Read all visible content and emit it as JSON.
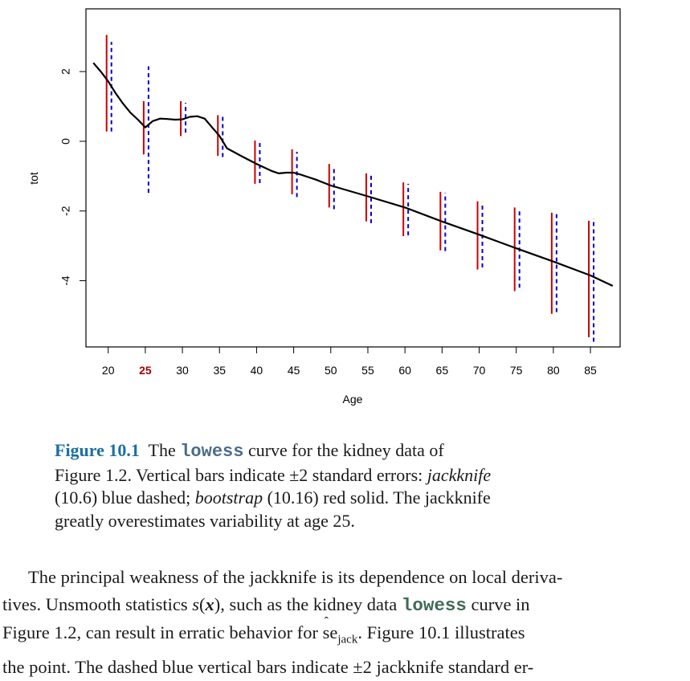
{
  "chart_data": {
    "type": "line",
    "xlabel": "Age",
    "ylabel": "tot",
    "xlim": [
      17,
      89
    ],
    "ylim": [
      -5.9,
      3.8
    ],
    "x_ticks": [
      "20",
      "25",
      "30",
      "35",
      "40",
      "45",
      "50",
      "55",
      "60",
      "65",
      "70",
      "75",
      "80",
      "85"
    ],
    "highlight_tick": "25",
    "y_ticks": [
      "-4",
      "-2",
      "0",
      "2"
    ],
    "curve": {
      "x": [
        18,
        19,
        20,
        21,
        22,
        23,
        24,
        25,
        26,
        27,
        28,
        29,
        30,
        31,
        32,
        33,
        34,
        35,
        36,
        38,
        40,
        42,
        43,
        44,
        45,
        46,
        48,
        50,
        55,
        60,
        65,
        70,
        75,
        80,
        85,
        88
      ],
      "y": [
        2.25,
        2.0,
        1.72,
        1.38,
        1.08,
        0.82,
        0.62,
        0.4,
        0.58,
        0.65,
        0.64,
        0.62,
        0.63,
        0.7,
        0.72,
        0.65,
        0.4,
        0.15,
        -0.2,
        -0.43,
        -0.65,
        -0.85,
        -0.92,
        -0.9,
        -0.9,
        -0.96,
        -1.1,
        -1.27,
        -1.58,
        -1.9,
        -2.3,
        -2.68,
        -3.07,
        -3.45,
        -3.85,
        -4.15
      ]
    },
    "series": [
      {
        "name": "bootstrap (10.16) red solid",
        "color": "#cc0000",
        "style": "solid",
        "ages": [
          20,
          25,
          30,
          35,
          40,
          45,
          50,
          55,
          60,
          65,
          70,
          75,
          80,
          85
        ],
        "lower": [
          0.28,
          -0.38,
          0.15,
          -0.42,
          -1.22,
          -1.52,
          -1.9,
          -2.3,
          -2.72,
          -3.13,
          -3.68,
          -4.3,
          -4.95,
          -5.62
        ],
        "upper": [
          3.05,
          1.15,
          1.15,
          0.75,
          0.02,
          -0.23,
          -0.65,
          -0.92,
          -1.18,
          -1.45,
          -1.72,
          -1.9,
          -2.05,
          -2.28
        ]
      },
      {
        "name": "jackknife (10.6) blue dashed",
        "color": "#0000cc",
        "style": "dashed",
        "ages": [
          20,
          25,
          30,
          35,
          40,
          45,
          50,
          55,
          60,
          65,
          70,
          75,
          80,
          85
        ],
        "lower": [
          0.28,
          -1.48,
          0.25,
          -0.45,
          -1.2,
          -1.6,
          -1.95,
          -2.35,
          -2.7,
          -3.15,
          -3.62,
          -4.2,
          -4.9,
          -5.75
        ],
        "upper": [
          2.85,
          2.15,
          1.1,
          0.75,
          -0.05,
          -0.3,
          -0.72,
          -0.98,
          -1.22,
          -1.48,
          -1.75,
          -1.98,
          -2.08,
          -2.22
        ]
      }
    ]
  },
  "caption": {
    "label": "Figure 10.1",
    "line1_a": "The",
    "code": "lowess",
    "line1_b": "curve for the kidney data of",
    "line2_a": "Figure 1.2. Vertical bars indicate ±2 standard errors:",
    "line2_em": "jackknife",
    "line3_a": "(10.6) blue dashed;",
    "line3_em": "bootstrap",
    "line3_b": "(10.16) red solid. The jackknife",
    "line4": "greatly overestimates variability at age 25."
  },
  "body": {
    "line1": "The principal weakness of the jackknife is its dependence on local deriva-",
    "line2_a": "tives. Unsmooth statistics",
    "line2_s": "s",
    "line2_open": "(",
    "line2_x": "x",
    "line2_close": ")",
    "line2_b": ", such as the kidney data",
    "line2_code": "lowess",
    "line2_c": "curve in",
    "line3_a": "Figure 1.2, can result in erratic behavior for",
    "line3_se": "se",
    "line3_hat": "ˆ",
    "line3_sub": "jack",
    "line3_b": ". Figure 10.1 illustrates",
    "line4": "the point. The dashed blue vertical bars indicate ±2 jackknife standard er-"
  }
}
